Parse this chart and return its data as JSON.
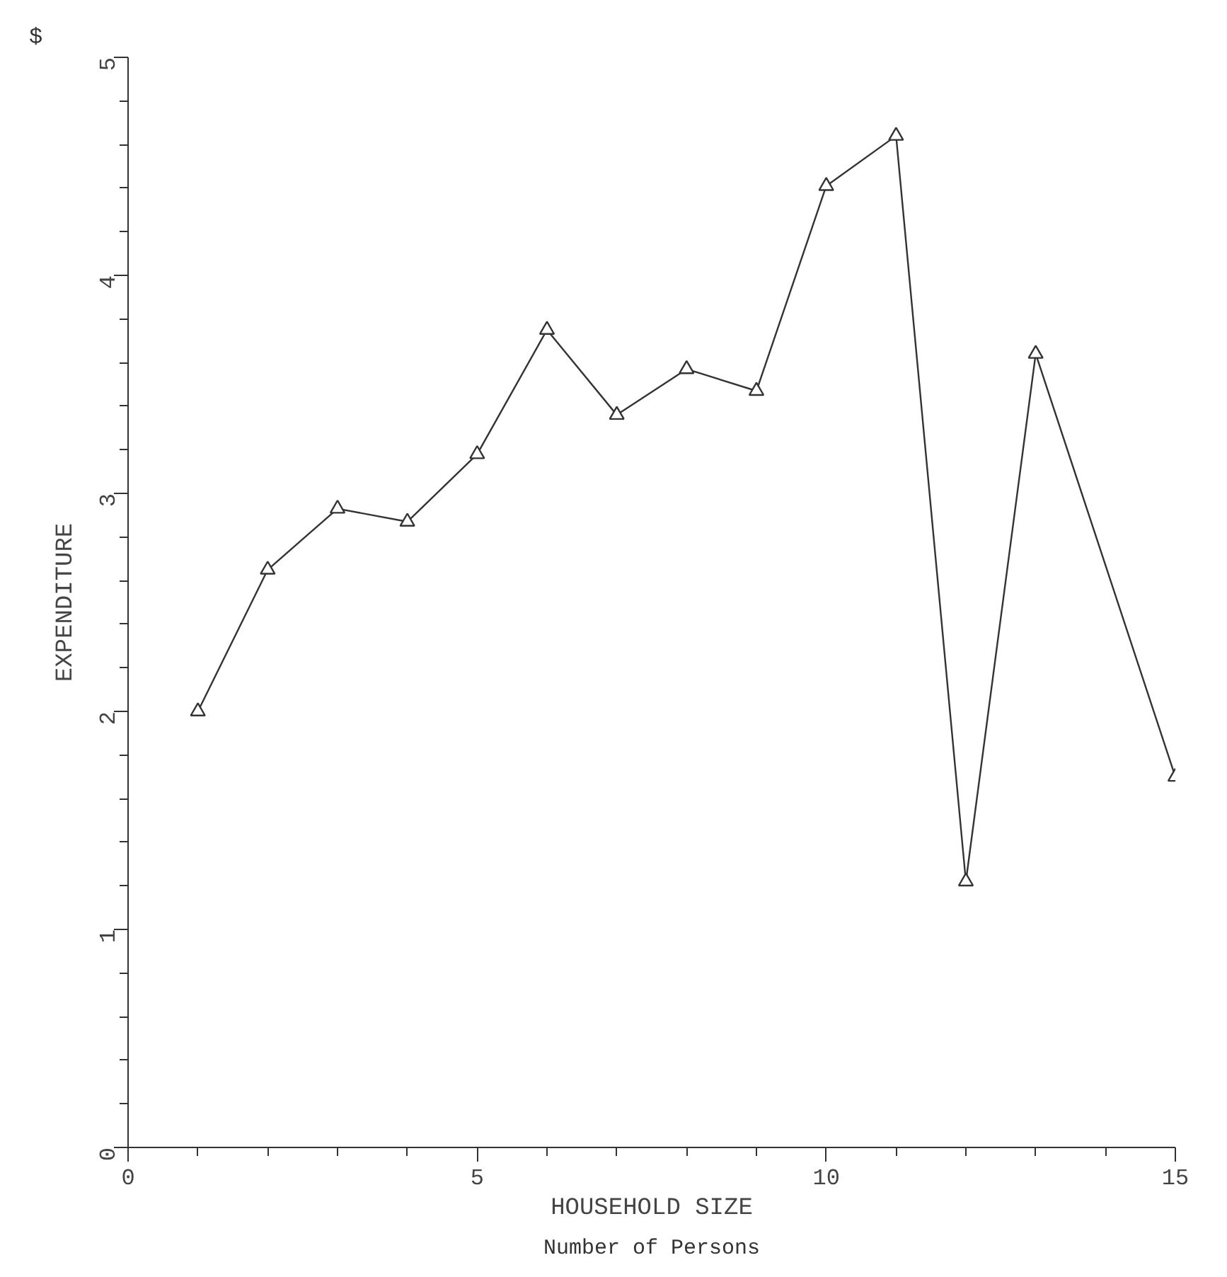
{
  "chart_data": {
    "type": "line",
    "xlabel": "HOUSEHOLD SIZE",
    "ylabel": "EXPENDITURE",
    "annotations": [
      "$",
      "Number of Persons"
    ],
    "x": [
      1,
      2,
      3,
      4,
      5,
      6,
      7,
      8,
      9,
      10,
      11,
      12,
      13,
      15
    ],
    "series": [
      {
        "color": "#333333",
        "values": [
          2.0,
          2.65,
          2.93,
          2.87,
          3.18,
          3.75,
          3.36,
          3.57,
          3.47,
          4.41,
          4.64,
          1.22,
          3.64,
          1.7
        ]
      }
    ],
    "xlim": [
      0,
      15
    ],
    "xticks": [
      0,
      5,
      10,
      15
    ],
    "ylim": [
      0,
      5
    ],
    "yticks": [
      0,
      1,
      2,
      3,
      4,
      5
    ],
    "marker": "triangle",
    "line_style": "solid"
  }
}
